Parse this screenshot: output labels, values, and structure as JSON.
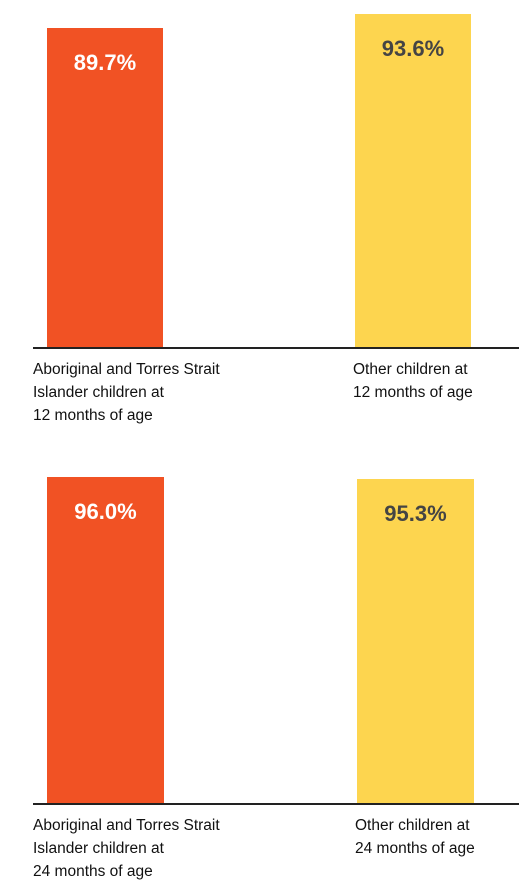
{
  "chart_data": [
    {
      "type": "bar",
      "categories": [
        "Aboriginal and Torres Strait\nIslander children at\n12 months of age",
        "Other children at\n12 months of age"
      ],
      "values": [
        89.7,
        93.6
      ],
      "value_labels": [
        "89.7%",
        "93.6%"
      ],
      "colors": [
        "#f15224",
        "#fdd54f"
      ]
    },
    {
      "type": "bar",
      "categories": [
        "Aboriginal and Torres Strait\nIslander children at\n24 months of age",
        "Other children at\n24 months of age"
      ],
      "values": [
        96.0,
        95.3
      ],
      "value_labels": [
        "96.0%",
        "95.3%"
      ],
      "colors": [
        "#f15224",
        "#fdd54f"
      ]
    }
  ]
}
